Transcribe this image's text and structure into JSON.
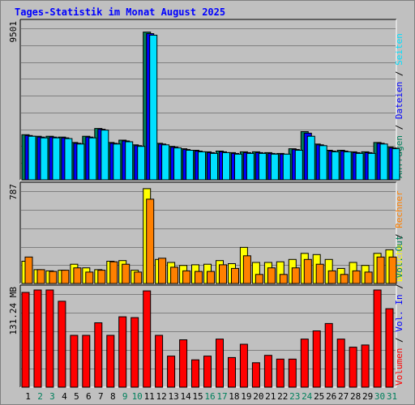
{
  "title": "Tages-Statistik im Monat August 2025",
  "chart_data": [
    {
      "type": "bar",
      "name": "requests-panel",
      "max_label": "9501",
      "ylim": [
        0,
        10000
      ],
      "legend": [
        {
          "text": "Anfragen",
          "color": "#00805c"
        },
        {
          "text": "Dateien",
          "color": "#0000ff"
        },
        {
          "text": "Seiten",
          "color": "#00e0ff"
        }
      ],
      "categories": [
        "1",
        "2",
        "3",
        "4",
        "5",
        "6",
        "7",
        "8",
        "9",
        "10",
        "11",
        "12",
        "13",
        "14",
        "15",
        "16",
        "17",
        "18",
        "19",
        "20",
        "21",
        "22",
        "23",
        "24",
        "25",
        "26",
        "27",
        "28",
        "29",
        "30",
        "31"
      ],
      "series": [
        {
          "name": "Anfragen",
          "color": "#00805c",
          "values": [
            2900,
            2800,
            2800,
            2750,
            2400,
            2800,
            3300,
            2400,
            2550,
            2250,
            9501,
            2350,
            2150,
            2000,
            1900,
            1800,
            1850,
            1750,
            1800,
            1800,
            1750,
            1700,
            2000,
            3100,
            2300,
            1900,
            1900,
            1800,
            1800,
            2400,
            2100
          ]
        },
        {
          "name": "Dateien",
          "color": "#0000ff",
          "values": [
            2850,
            2750,
            2750,
            2700,
            2350,
            2750,
            3250,
            2350,
            2500,
            2200,
            9400,
            2300,
            2100,
            1950,
            1850,
            1750,
            1800,
            1700,
            1750,
            1750,
            1700,
            1650,
            1950,
            3000,
            2250,
            1850,
            1850,
            1750,
            1750,
            2350,
            2050
          ]
        },
        {
          "name": "Seiten",
          "color": "#00e0ff",
          "values": [
            2800,
            2700,
            2700,
            2650,
            2300,
            2700,
            3200,
            2300,
            2450,
            2150,
            9300,
            2250,
            2050,
            1900,
            1800,
            1700,
            1750,
            1650,
            1700,
            1700,
            1650,
            1650,
            1900,
            2800,
            2200,
            1800,
            1800,
            1700,
            1700,
            2300,
            2000
          ]
        }
      ]
    },
    {
      "type": "bar",
      "name": "visits-panel",
      "max_label": "787",
      "ylim": [
        0,
        800
      ],
      "legend": [
        {
          "text": "Besuche",
          "color": "#ffff00"
        },
        {
          "text": "Rechner",
          "color": "#ff8000"
        }
      ],
      "categories": [
        "1",
        "2",
        "3",
        "4",
        "5",
        "6",
        "7",
        "8",
        "9",
        "10",
        "11",
        "12",
        "13",
        "14",
        "15",
        "16",
        "17",
        "18",
        "19",
        "20",
        "21",
        "22",
        "23",
        "24",
        "25",
        "26",
        "27",
        "28",
        "29",
        "30",
        "31"
      ],
      "series": [
        {
          "name": "Besuche",
          "color": "#ffff00",
          "values": [
            185,
            115,
            105,
            110,
            160,
            130,
            115,
            185,
            190,
            110,
            787,
            200,
            175,
            150,
            155,
            160,
            190,
            165,
            300,
            175,
            175,
            180,
            200,
            250,
            240,
            200,
            125,
            175,
            150,
            250,
            280
          ]
        },
        {
          "name": "Rechner",
          "color": "#ff8000",
          "values": [
            220,
            115,
            100,
            110,
            130,
            95,
            110,
            180,
            160,
            95,
            700,
            210,
            135,
            105,
            100,
            100,
            155,
            125,
            230,
            75,
            130,
            75,
            130,
            200,
            160,
            105,
            75,
            105,
            95,
            220,
            220
          ]
        }
      ]
    },
    {
      "type": "bar",
      "name": "volume-panel",
      "max_label": "131.24 MB",
      "ylim": [
        0,
        131.24
      ],
      "legend": [
        {
          "text": "Volumen",
          "color": "#ff0000"
        },
        {
          "text": "Vol. In",
          "color": "#0000ff"
        },
        {
          "text": "Vol. Out",
          "color": "#00805c"
        }
      ],
      "categories": [
        "1",
        "2",
        "3",
        "4",
        "5",
        "6",
        "7",
        "8",
        "9",
        "10",
        "11",
        "12",
        "13",
        "14",
        "15",
        "16",
        "17",
        "18",
        "19",
        "20",
        "21",
        "22",
        "23",
        "24",
        "25",
        "26",
        "27",
        "28",
        "29",
        "30",
        "31"
      ],
      "series": [
        {
          "name": "Volumen",
          "color": "#ff0000",
          "values": [
            128,
            131.24,
            131.24,
            116,
            70,
            70,
            87,
            70,
            95,
            94,
            130,
            70,
            42,
            64,
            37,
            42,
            65,
            40,
            58,
            33,
            43,
            38,
            38,
            65,
            76,
            86,
            65,
            54,
            57,
            131.24,
            106
          ]
        }
      ]
    }
  ],
  "x_axis": {
    "labels": [
      "1",
      "2",
      "3",
      "4",
      "5",
      "6",
      "7",
      "8",
      "9",
      "10",
      "11",
      "12",
      "13",
      "14",
      "15",
      "16",
      "17",
      "18",
      "19",
      "20",
      "21",
      "22",
      "23",
      "24",
      "25",
      "26",
      "27",
      "28",
      "29",
      "30",
      "31"
    ],
    "weekend_days": [
      "2",
      "3",
      "9",
      "10",
      "16",
      "17",
      "23",
      "24",
      "30",
      "31"
    ],
    "weekday_color": "#000000",
    "weekend_color": "#00805c"
  }
}
